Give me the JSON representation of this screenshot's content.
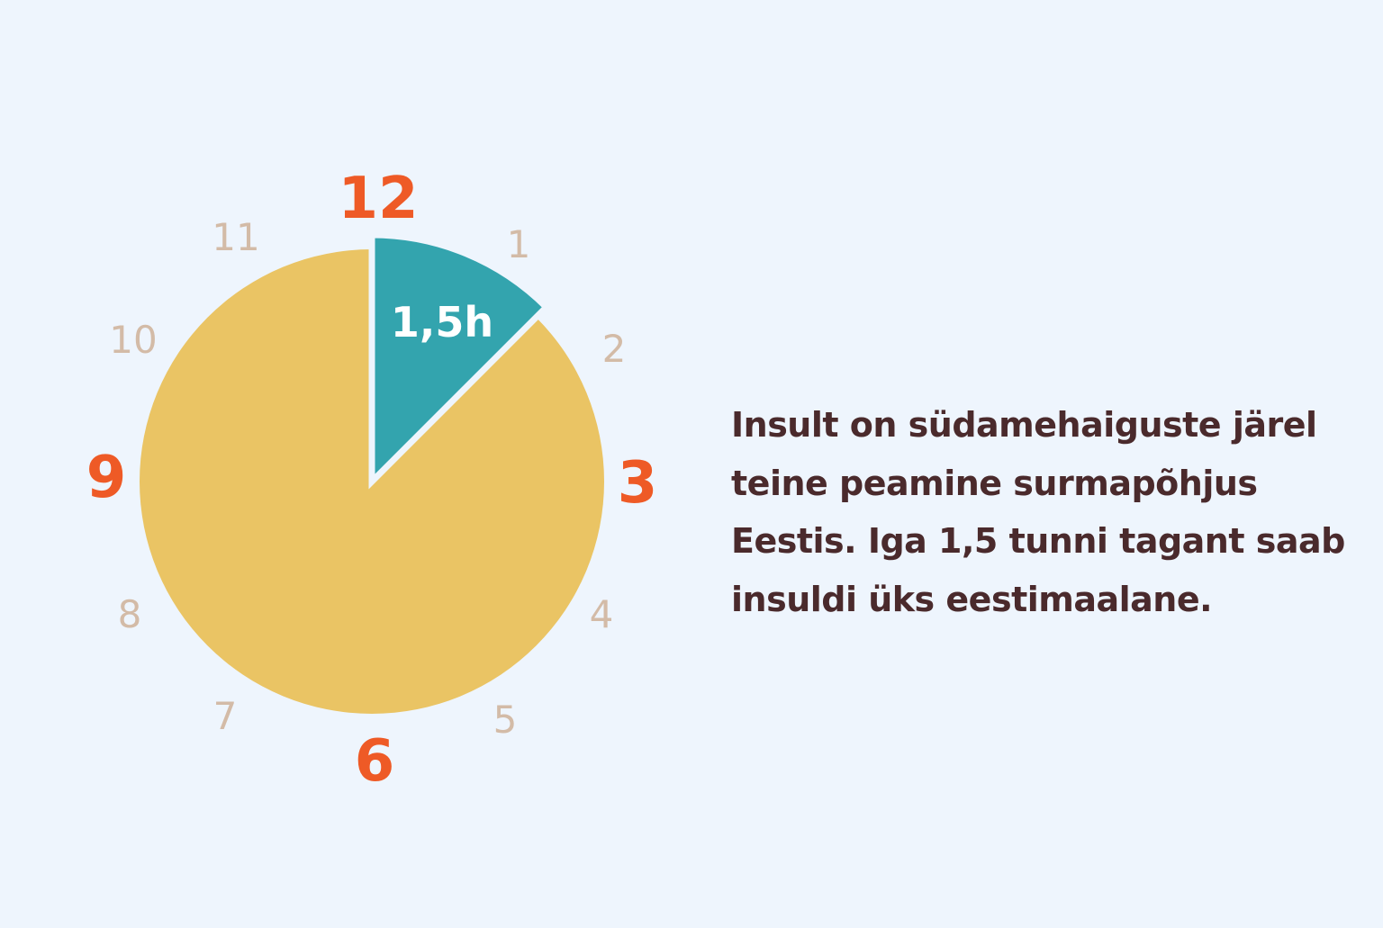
{
  "clock": {
    "numbers": [
      {
        "hour": 12,
        "label": "12",
        "emphasis": true
      },
      {
        "hour": 1,
        "label": "1",
        "emphasis": false
      },
      {
        "hour": 2,
        "label": "2",
        "emphasis": false
      },
      {
        "hour": 3,
        "label": "3",
        "emphasis": true
      },
      {
        "hour": 4,
        "label": "4",
        "emphasis": false
      },
      {
        "hour": 5,
        "label": "5",
        "emphasis": false
      },
      {
        "hour": 6,
        "label": "6",
        "emphasis": true
      },
      {
        "hour": 7,
        "label": "7",
        "emphasis": false
      },
      {
        "hour": 8,
        "label": "8",
        "emphasis": false
      },
      {
        "hour": 9,
        "label": "9",
        "emphasis": true
      },
      {
        "hour": 10,
        "label": "10",
        "emphasis": false
      },
      {
        "hour": 11,
        "label": "11",
        "emphasis": false
      }
    ],
    "highlight_hours": 1.5,
    "highlight_label": "1,5h"
  },
  "message": {
    "lines": [
      "Insult on südamehaiguste järel",
      "teine peamine surmapõhjus",
      "Eestis. Iga 1,5 tunni tagant saab",
      "insuldi üks eestimaalane."
    ]
  },
  "colors": {
    "background": "#eef5fd",
    "clock_face": "#eac464",
    "highlight_slice": "#33a4ae",
    "major_numbers": "#ee5a26",
    "minor_numbers": "#d3bba7",
    "text": "#4a2a2c"
  }
}
